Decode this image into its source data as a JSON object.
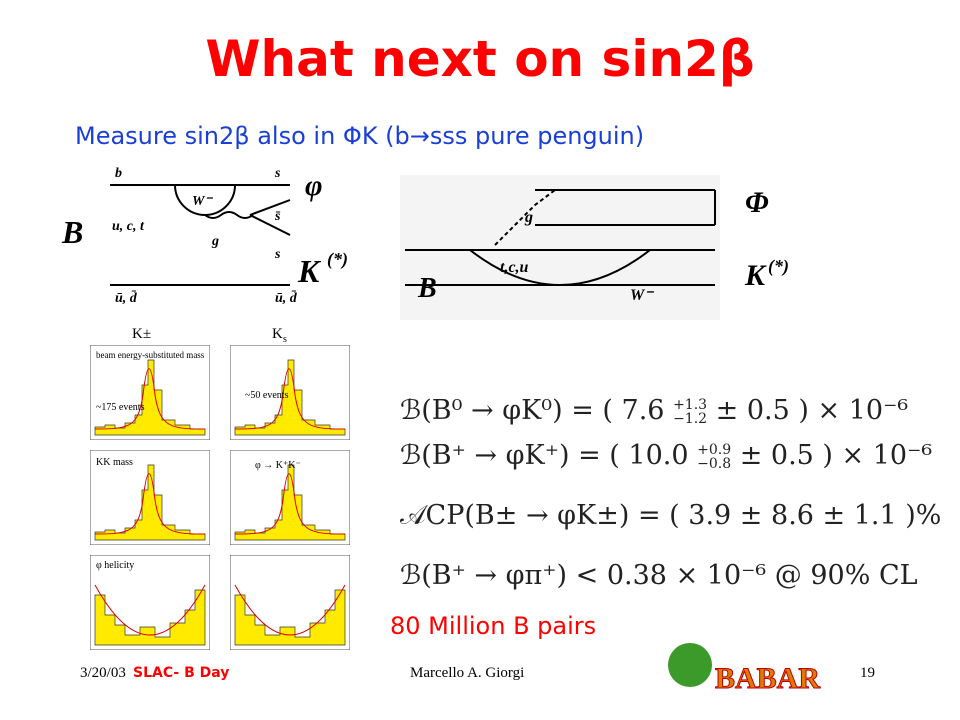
{
  "title": "What next on sin2β",
  "subtitle": "Measure sin2β also in ΦK (b→sss pure penguin)",
  "diagram_left": {
    "labels": [
      "b",
      "s",
      "φ",
      "B",
      "u, c, t",
      "W⁻",
      "g",
      "s̄",
      "s",
      "K",
      "(*)",
      "ū, d̄",
      "ū, d̄"
    ]
  },
  "diagram_right": {
    "labels": [
      "g",
      "Φ",
      "K",
      "(*)",
      "B",
      "t,c,u",
      "W⁻"
    ]
  },
  "plots": {
    "k_charged": "K±",
    "k_short": "K",
    "k_short_sub": "s",
    "annotations": [
      "beam energy-substituted mass",
      "~175 events",
      "~50 events",
      "KK mass",
      "φ → K⁺K⁻",
      "φ helicity"
    ]
  },
  "results": [
    {
      "pre": "ℬ(B⁰ → φK⁰) = ( 7.6 ",
      "sup": "+1.3",
      "sub": "−1.2",
      "post": " ± 0.5 ) × 10⁻⁶"
    },
    {
      "pre": "ℬ(B⁺ → φK⁺) = ( 10.0 ",
      "sup": "+0.9",
      "sub": "−0.8",
      "post": " ± 0.5 ) × 10⁻⁶"
    },
    {
      "text": "𝒜CP(B± → φK±) = ( 3.9 ± 8.6 ± 1.1 )%"
    },
    {
      "text": "ℬ(B⁺ → φπ⁺) < 0.38 × 10⁻⁶   @ 90% CL"
    }
  ],
  "note": "80 Million B pairs",
  "footer": {
    "date": "3/20/03",
    "event": "SLAC- B Day",
    "author": "Marcello A. Giorgi",
    "page": "19",
    "logo": "BABAR"
  }
}
